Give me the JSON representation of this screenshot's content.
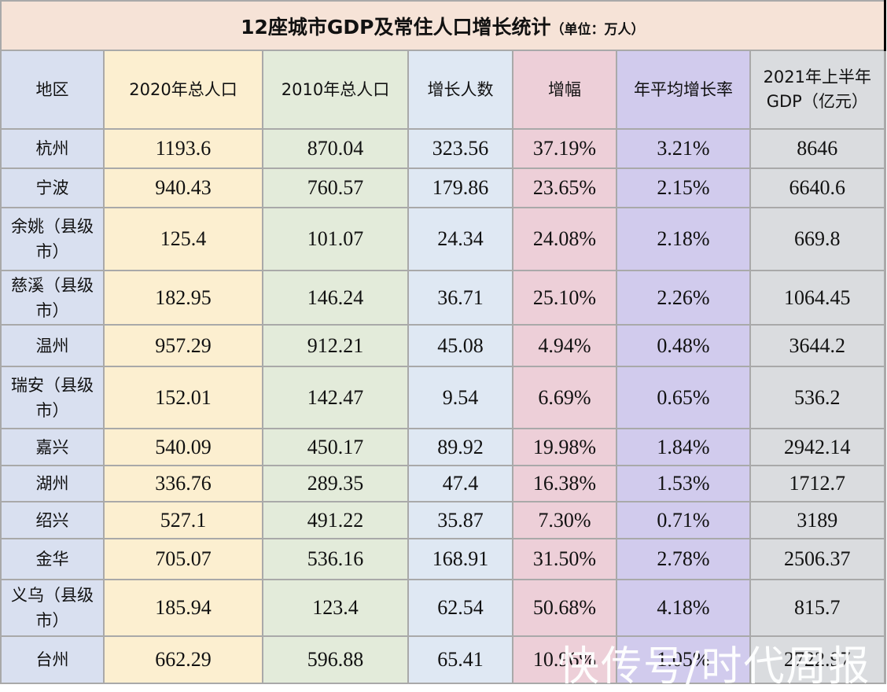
{
  "title": {
    "main": "12座城市GDP及常住人口增长统计",
    "unit": "（单位：万人）"
  },
  "headers": [
    "地区",
    "2020年总人口",
    "2010年总人口",
    "增长人数",
    "增幅",
    "年平均增长率",
    "2021年上半年GDP（亿元）"
  ],
  "header_lines": {
    "gdp_line1": "2021年上半年",
    "gdp_line2": "GDP（亿元）"
  },
  "column_colors": [
    "#d9e0f0",
    "#fcefd0",
    "#e3ebda",
    "#dfe8f3",
    "#edcfd8",
    "#d1cbed",
    "#dadcdf"
  ],
  "title_color": "#f6e3d7",
  "rows": [
    {
      "region": "杭州",
      "pop2020": "1193.6",
      "pop2010": "870.04",
      "growth": "323.56",
      "increase": "37.19%",
      "annual_rate": "3.21%",
      "gdp_h1_2021": "8646"
    },
    {
      "region": "宁波",
      "pop2020": "940.43",
      "pop2010": "760.57",
      "growth": "179.86",
      "increase": "23.65%",
      "annual_rate": "2.15%",
      "gdp_h1_2021": "6640.6"
    },
    {
      "region": "余姚（县级市）",
      "pop2020": "125.4",
      "pop2010": "101.07",
      "growth": "24.34",
      "increase": "24.08%",
      "annual_rate": "2.18%",
      "gdp_h1_2021": "669.8"
    },
    {
      "region": "慈溪（县级市）",
      "pop2020": "182.95",
      "pop2010": "146.24",
      "growth": "36.71",
      "increase": "25.10%",
      "annual_rate": "2.26%",
      "gdp_h1_2021": "1064.45"
    },
    {
      "region": "温州",
      "pop2020": "957.29",
      "pop2010": "912.21",
      "growth": "45.08",
      "increase": "4.94%",
      "annual_rate": "0.48%",
      "gdp_h1_2021": "3644.2"
    },
    {
      "region": "瑞安（县级市）",
      "pop2020": "152.01",
      "pop2010": "142.47",
      "growth": "9.54",
      "increase": "6.69%",
      "annual_rate": "0.65%",
      "gdp_h1_2021": "536.2"
    },
    {
      "region": "嘉兴",
      "pop2020": "540.09",
      "pop2010": "450.17",
      "growth": "89.92",
      "increase": "19.98%",
      "annual_rate": "1.84%",
      "gdp_h1_2021": "2942.14"
    },
    {
      "region": "湖州",
      "pop2020": "336.76",
      "pop2010": "289.35",
      "growth": "47.4",
      "increase": "16.38%",
      "annual_rate": "1.53%",
      "gdp_h1_2021": "1712.7"
    },
    {
      "region": "绍兴",
      "pop2020": "527.1",
      "pop2010": "491.22",
      "growth": "35.87",
      "increase": "7.30%",
      "annual_rate": "0.71%",
      "gdp_h1_2021": "3189"
    },
    {
      "region": "金华",
      "pop2020": "705.07",
      "pop2010": "536.16",
      "growth": "168.91",
      "increase": "31.50%",
      "annual_rate": "2.78%",
      "gdp_h1_2021": "2506.37"
    },
    {
      "region": "义乌（县级市）",
      "pop2020": "185.94",
      "pop2010": "123.4",
      "growth": "62.54",
      "increase": "50.68%",
      "annual_rate": "4.18%",
      "gdp_h1_2021": "815.7"
    },
    {
      "region": "台州",
      "pop2020": "662.29",
      "pop2010": "596.88",
      "growth": "65.41",
      "increase": "10.96%",
      "annual_rate": "1.05%",
      "gdp_h1_2021": "2722.97"
    }
  ],
  "watermark": "快传号/时代周报"
}
